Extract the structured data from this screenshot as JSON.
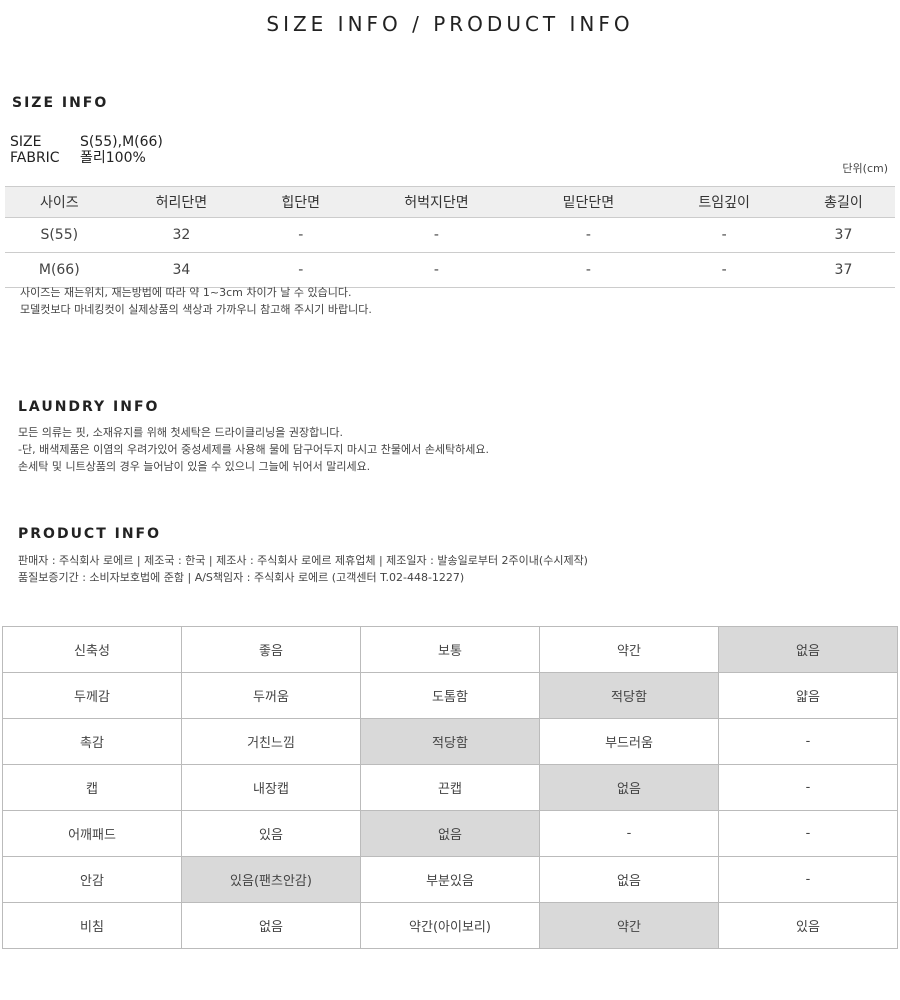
{
  "title": "SIZE INFO / PRODUCT INFO",
  "size_info": {
    "heading": "SIZE INFO",
    "size_label": "SIZE",
    "size_value": "S(55),M(66)",
    "fabric_label": "FABRIC",
    "fabric_value": "폴리100%",
    "unit": "단위(cm)",
    "headers": [
      "사이즈",
      "허리단면",
      "힙단면",
      "허벅지단면",
      "밑단단면",
      "트임깊이",
      "총길이"
    ],
    "rows": [
      [
        "S(55)",
        "32",
        "-",
        "-",
        "-",
        "-",
        "37"
      ],
      [
        "M(66)",
        "34",
        "-",
        "-",
        "-",
        "-",
        "37"
      ]
    ],
    "notes": [
      "사이즈는 재는위치, 재는방법에 따라 약 1~3cm 차이가 날 수 있습니다.",
      "모델컷보다 마네킹컷이 실제상품의 색상과 가까우니 참고해 주시기 바랍니다."
    ]
  },
  "laundry": {
    "heading": "LAUNDRY INFO",
    "lines": [
      "모든 의류는 핏, 소재유지를 위해 첫세탁은 드라이클리닝을 권장합니다.",
      "-단, 배색제품은 이염의 우려가있어 중성세제를 사용해 물에 담구어두지 마시고 찬물에서 손세탁하세요.",
      "손세탁 및 니트상품의 경우 늘어남이 있을 수 있으니 그늘에 뉘어서 말리세요."
    ]
  },
  "product": {
    "heading": "PRODUCT INFO",
    "lines": [
      "판매자 : 주식회사 로에르 | 제조국 : 한국 | 제조사 : 주식회사 로에르 제휴업체 | 제조일자 : 발송일로부터 2주이내(수시제작)",
      "품질보증기간 : 소비자보호법에 준함 | A/S책임자 : 주식회사 로에르 (고객센터 T.02-448-1227)"
    ]
  },
  "attributes": {
    "highlight_color": "#d9d9d9",
    "rows": [
      {
        "cells": [
          "신축성",
          "좋음",
          "보통",
          "약간",
          "없음"
        ],
        "selected": 4
      },
      {
        "cells": [
          "두께감",
          "두꺼움",
          "도톰함",
          "적당함",
          "얇음"
        ],
        "selected": 3
      },
      {
        "cells": [
          "촉감",
          "거친느낌",
          "적당함",
          "부드러움",
          "-"
        ],
        "selected": 2
      },
      {
        "cells": [
          "캡",
          "내장캡",
          "끈캡",
          "없음",
          "-"
        ],
        "selected": 3
      },
      {
        "cells": [
          "어깨패드",
          "있음",
          "없음",
          "-",
          "-"
        ],
        "selected": 2
      },
      {
        "cells": [
          "안감",
          "있음(팬츠안감)",
          "부분있음",
          "없음",
          "-"
        ],
        "selected": 1
      },
      {
        "cells": [
          "비침",
          "없음",
          "약간(아이보리)",
          "약간",
          "있음"
        ],
        "selected": 3
      }
    ]
  }
}
